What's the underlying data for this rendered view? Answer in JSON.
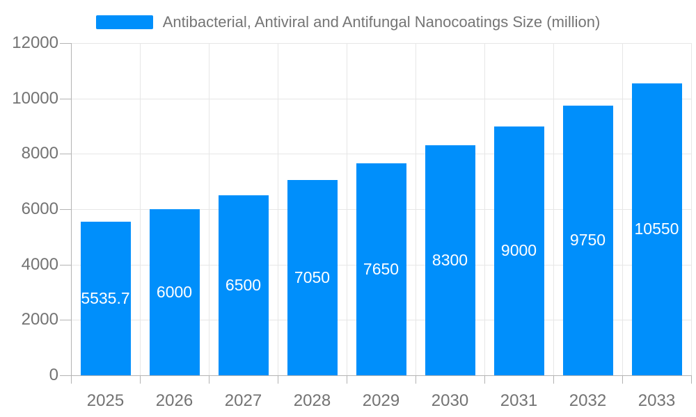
{
  "page": {
    "background": "#ffffff"
  },
  "legend": {
    "swatch_color": "#008FFB",
    "label": "Antibacterial, Antiviral and Antifungal Nanocoatings Size (million)"
  },
  "chart_data": {
    "type": "bar",
    "title": "Antibacterial, Antiviral and Antifungal Nanocoatings Size (million)",
    "categories": [
      "2025",
      "2026",
      "2027",
      "2028",
      "2029",
      "2030",
      "2031",
      "2032",
      "2033"
    ],
    "values": [
      5535.7,
      6000,
      6500,
      7050,
      7650,
      8300,
      9000,
      9750,
      10550
    ],
    "bar_labels": [
      "5535.7",
      "6000",
      "6500",
      "7050",
      "7650",
      "8300",
      "9000",
      "9750",
      "10550"
    ],
    "xlabel": "",
    "ylabel": "",
    "ylim": [
      0,
      12000
    ],
    "ytick_step": 2000,
    "ytick_labels": [
      "0",
      "2000",
      "4000",
      "6000",
      "8000",
      "10000",
      "12000"
    ],
    "grid": true,
    "legend_position": "top-center",
    "colors": {
      "bar": "#008FFB",
      "bar_label_text": "#ffffff",
      "axis_text": "#737373",
      "title_text": "#757575",
      "gridline": "#e6e6e6",
      "axis_line": "#b3b3b3"
    }
  }
}
